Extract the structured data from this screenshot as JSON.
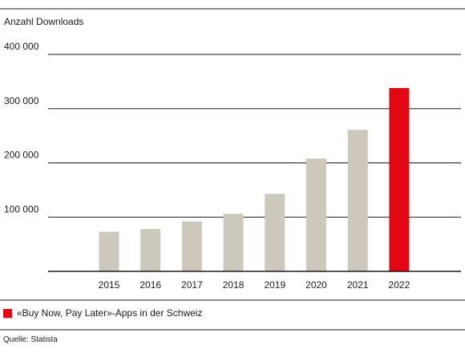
{
  "chart_data": {
    "type": "bar",
    "ylabel": "Anzahl Downloads",
    "categories": [
      "2015",
      "2016",
      "2017",
      "2018",
      "2019",
      "2020",
      "2021",
      "2022"
    ],
    "values": [
      73000,
      78000,
      92000,
      106000,
      143000,
      208000,
      261000,
      338000
    ],
    "highlight": "2022",
    "ylim": [
      0,
      400000
    ],
    "yticks": [
      100000,
      200000,
      300000,
      400000
    ],
    "ytick_labels": [
      "100 000",
      "200 000",
      "300 000",
      "400 000"
    ],
    "grid": true,
    "colors": {
      "bar": "#ccc8bc",
      "highlight": "#e30613",
      "axis": "#1a1a1a",
      "grid": "#1a1a1a"
    },
    "legend": "«Buy Now, Pay Later»-Apps in der Schweiz",
    "source": "Quelle: Statista"
  }
}
